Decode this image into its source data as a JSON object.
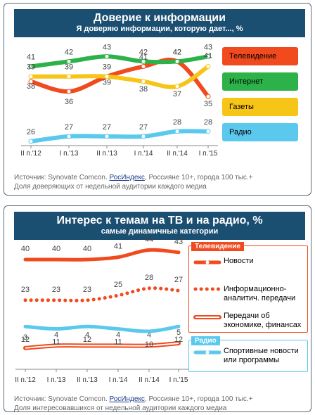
{
  "panel1": {
    "title": "Доверие к информации",
    "subtitle": "Я доверяю информации, которую дает..., %",
    "footnote_prefix": "Источник: Synovate Comcon.",
    "footnote_link": "РосИндекс",
    "footnote_suffix": ", Россияне 10+, города 100 тыс.+",
    "footnote_line2": "Доля доверяющих от недельной аудитории каждого медиа"
  },
  "panel2": {
    "title": "Интерес к темам на ТВ и на радио, %",
    "subtitle": "самые динамичные категории",
    "footnote_prefix": "Источник: Synovate Comcon.",
    "footnote_link": "РосИндекс",
    "footnote_suffix": ", Россияне 10+, города 100 тыс.+",
    "footnote_line2": "Доля интересовавшихся от недельной аудитории каждого медиа",
    "group_tv": "Телевидение",
    "group_radio": "Радио"
  },
  "colors": {
    "tv": "#f04a1e",
    "internet": "#2db24a",
    "press": "#f7c518",
    "radio": "#5bc8ee",
    "frame": "#1b4f72"
  },
  "chart_data": [
    {
      "type": "line",
      "title": "Доверие к информации",
      "subtitle": "Я доверяю информации, которую дает..., %",
      "categories": [
        "II п.'12",
        "I п.'13",
        "II п.'13",
        "I п.'14",
        "II п.'14",
        "I п.'15"
      ],
      "ylim": [
        20,
        50
      ],
      "legend": "right",
      "series": [
        {
          "name": "Телевидение",
          "values": [
            38,
            36,
            39,
            41,
            42,
            35
          ],
          "color": "#f04a1e"
        },
        {
          "name": "Интернет",
          "values": [
            41,
            42,
            43,
            42,
            42,
            43
          ],
          "color": "#2db24a"
        },
        {
          "name": "Газеты",
          "values": [
            39,
            39,
            39,
            38,
            37,
            41
          ],
          "color": "#f7c518"
        },
        {
          "name": "Радио",
          "values": [
            26,
            27,
            27,
            27,
            28,
            28
          ],
          "color": "#5bc8ee"
        }
      ]
    },
    {
      "type": "line",
      "title": "Интерес к темам на ТВ и на радио, %",
      "subtitle": "самые динамичные категории",
      "categories": [
        "II п.'12",
        "I п.'13",
        "II п.'13",
        "I п.'14",
        "II п.'14",
        "I п.'15"
      ],
      "ylim": [
        0,
        48
      ],
      "legend": "right",
      "series": [
        {
          "name": "Новости",
          "group": "Телевидение",
          "style": "solid",
          "values": [
            40,
            40,
            40,
            41,
            44,
            43
          ],
          "color": "#f04a1e"
        },
        {
          "name": "Информационно-аналитич. передачи",
          "group": "Телевидение",
          "style": "dotted",
          "values": [
            23,
            23,
            23,
            25,
            28,
            27
          ],
          "color": "#f04a1e"
        },
        {
          "name": "Передачи об экономике, финансах",
          "group": "Телевидение",
          "style": "double",
          "values": [
            3,
            4,
            4,
            4,
            4,
            5
          ],
          "color": "#f04a1e"
        },
        {
          "name": "Спортивные новости или программы",
          "group": "Радио",
          "style": "solid",
          "values": [
            12,
            11,
            12,
            11,
            10,
            12
          ],
          "color": "#5bc8ee"
        }
      ]
    }
  ]
}
